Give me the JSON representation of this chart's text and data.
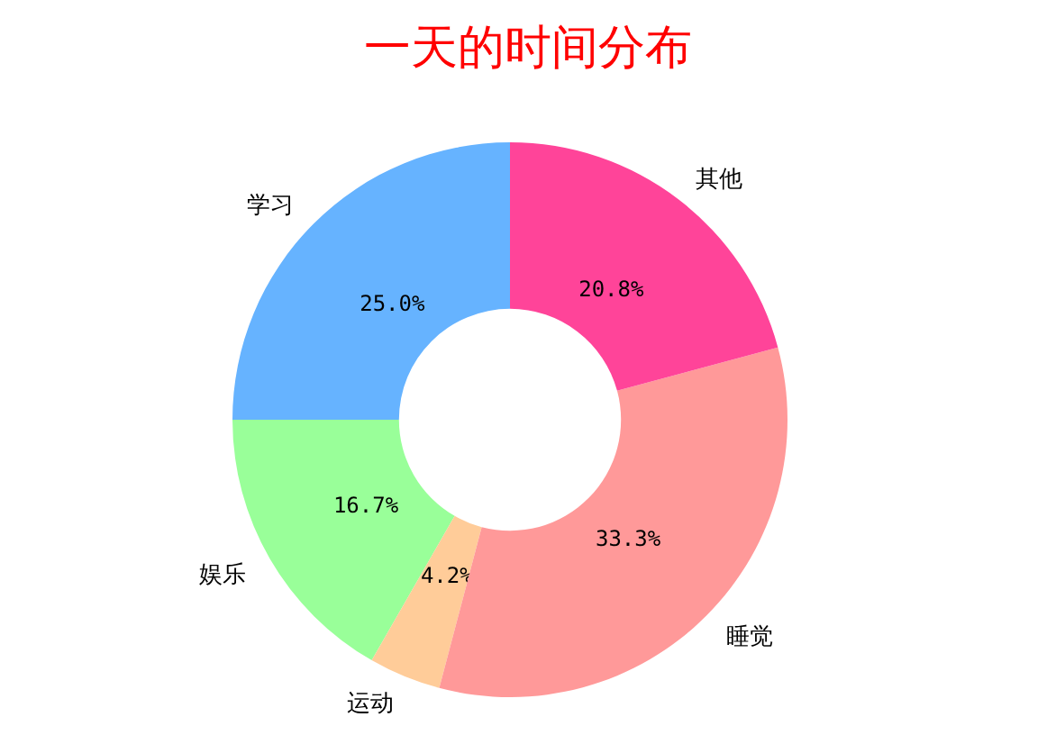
{
  "chart_data": {
    "type": "donut",
    "title": "一天的时间分布",
    "categories": [
      "学习",
      "娱乐",
      "运动",
      "睡觉",
      "其他"
    ],
    "values": [
      25.0,
      16.7,
      4.2,
      33.3,
      20.8
    ],
    "value_labels": [
      "25.0%",
      "16.7%",
      "4.2%",
      "33.3%",
      "20.8%"
    ],
    "colors": [
      "#66b3ff",
      "#99ff99",
      "#ffcc99",
      "#ff9999",
      "#ff4499"
    ],
    "legend": false
  }
}
